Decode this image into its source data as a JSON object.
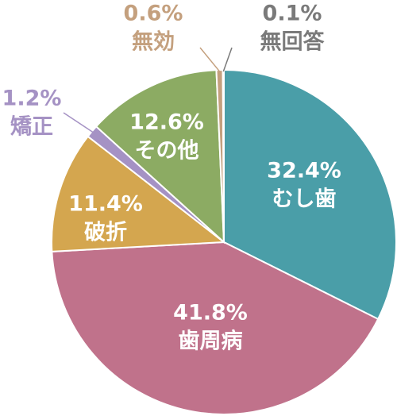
{
  "chart_data": {
    "type": "pie",
    "categories": [
      "むし歯",
      "歯周病",
      "破折",
      "矯正",
      "その他",
      "無効",
      "無回答"
    ],
    "values": [
      32.4,
      41.8,
      11.4,
      1.2,
      12.6,
      0.6,
      0.1
    ],
    "value_labels": [
      "32.4%",
      "41.8%",
      "11.4%",
      "1.2%",
      "12.6%",
      "0.6%",
      "0.1%"
    ],
    "colors": [
      "#4a9ea8",
      "#c0728b",
      "#d4a64f",
      "#a592c4",
      "#8cab63",
      "#c4a07e",
      "#7a7a7a"
    ]
  }
}
